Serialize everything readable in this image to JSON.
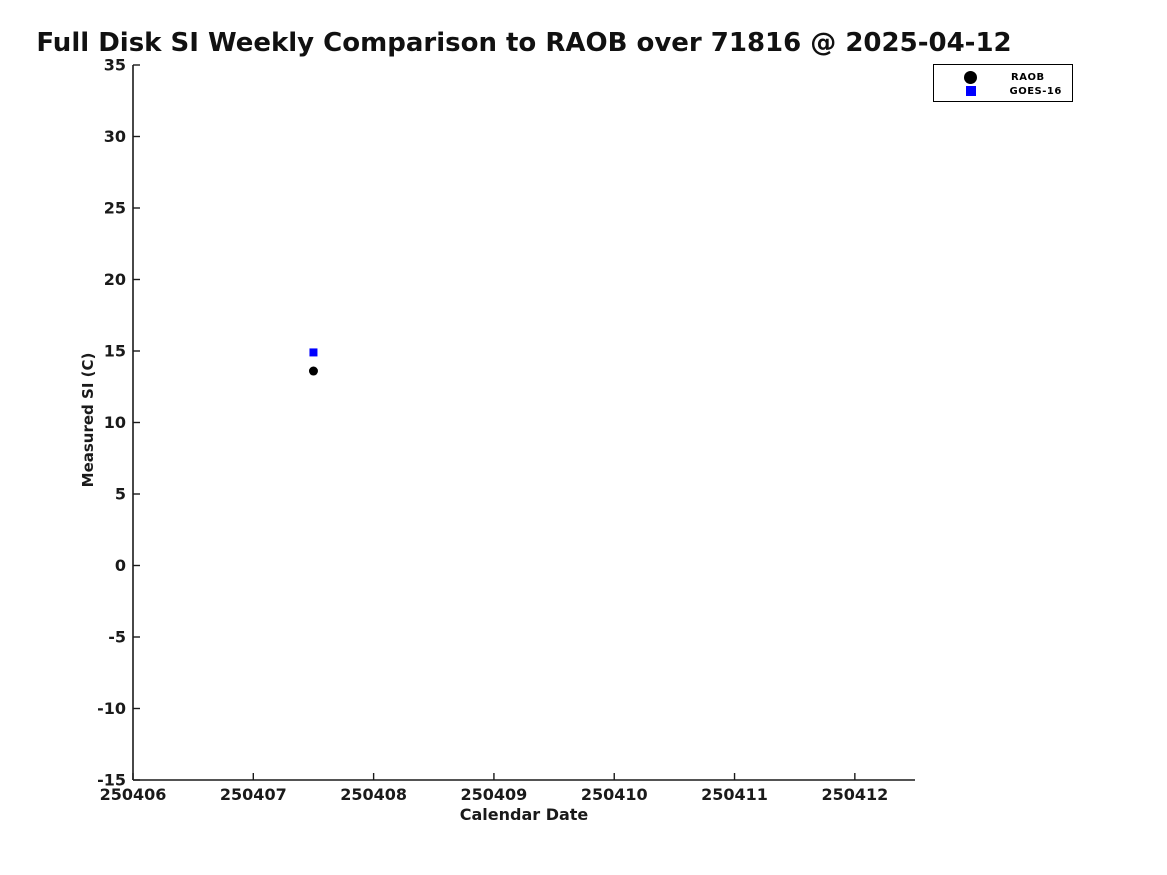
{
  "page": {
    "background": "#ffffff",
    "axis_color": "#1a1a1a",
    "title_color": "#111111"
  },
  "chart_data": {
    "type": "scatter",
    "title": "Full Disk SI Weekly Comparison to RAOB over 71816 @ 2025-04-12",
    "xlabel": "Calendar Date",
    "ylabel": "Measured SI (C)",
    "station": "71816",
    "date": "2025-04-12",
    "xlim": [
      250406,
      250412.5
    ],
    "ylim": [
      -15,
      35
    ],
    "x_ticks": [
      250406,
      250407,
      250408,
      250409,
      250410,
      250411,
      250412
    ],
    "y_ticks": [
      35,
      30,
      25,
      20,
      15,
      10,
      5,
      0,
      -5,
      -10,
      -15
    ],
    "grid": false,
    "legend_position": "upper-right-outside",
    "series": [
      {
        "name": "RAOB",
        "marker": "circle",
        "color": "#000000",
        "points": [
          {
            "x": 250407.5,
            "y": 13.6
          }
        ]
      },
      {
        "name": "GOES-16",
        "marker": "square",
        "color": "#0000ff",
        "points": [
          {
            "x": 250407.5,
            "y": 14.9
          }
        ]
      }
    ]
  }
}
